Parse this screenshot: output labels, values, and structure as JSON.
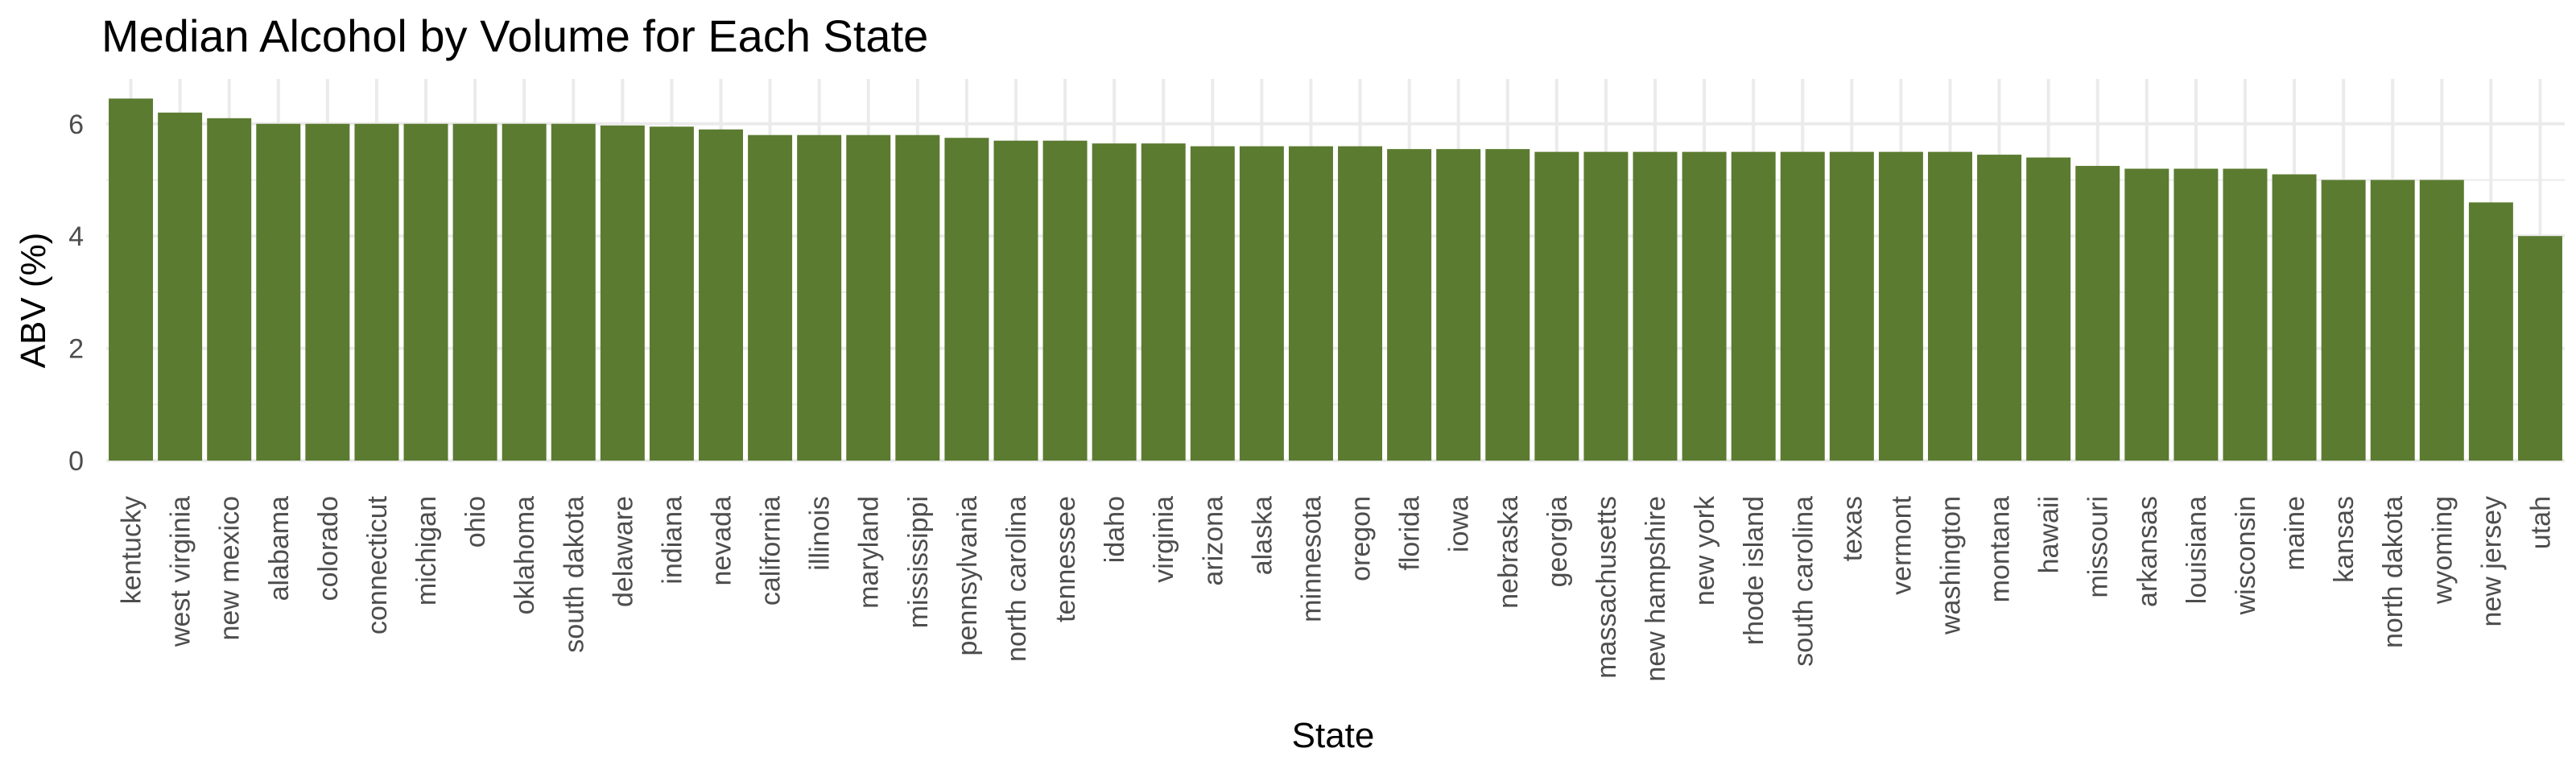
{
  "chart_data": {
    "type": "bar",
    "title": "Median Alcohol by Volume for Each State",
    "xlabel": "State",
    "ylabel": "ABV (%)",
    "ylim": [
      0,
      6.8
    ],
    "yticks": [
      0,
      2,
      4,
      6
    ],
    "grid": true,
    "legend": "none",
    "bar_color": "#5b7b30",
    "categories": [
      "kentucky",
      "west virginia",
      "new mexico",
      "alabama",
      "colorado",
      "connecticut",
      "michigan",
      "ohio",
      "oklahoma",
      "south dakota",
      "delaware",
      "indiana",
      "nevada",
      "california",
      "illinois",
      "maryland",
      "mississippi",
      "pennsylvania",
      "north carolina",
      "tennessee",
      "idaho",
      "virginia",
      "arizona",
      "alaska",
      "minnesota",
      "oregon",
      "florida",
      "iowa",
      "nebraska",
      "georgia",
      "massachusetts",
      "new hampshire",
      "new york",
      "rhode island",
      "south carolina",
      "texas",
      "vermont",
      "washington",
      "montana",
      "hawaii",
      "missouri",
      "arkansas",
      "louisiana",
      "wisconsin",
      "maine",
      "kansas",
      "north dakota",
      "wyoming",
      "new jersey",
      "utah"
    ],
    "values": [
      6.45,
      6.2,
      6.1,
      6.0,
      6.0,
      6.0,
      6.0,
      6.0,
      6.0,
      6.0,
      5.97,
      5.95,
      5.9,
      5.8,
      5.8,
      5.8,
      5.8,
      5.75,
      5.7,
      5.7,
      5.65,
      5.65,
      5.6,
      5.6,
      5.6,
      5.6,
      5.55,
      5.55,
      5.55,
      5.5,
      5.5,
      5.5,
      5.5,
      5.5,
      5.5,
      5.5,
      5.5,
      5.5,
      5.45,
      5.4,
      5.25,
      5.2,
      5.2,
      5.2,
      5.1,
      5.0,
      5.0,
      5.0,
      4.6,
      4.0
    ]
  }
}
